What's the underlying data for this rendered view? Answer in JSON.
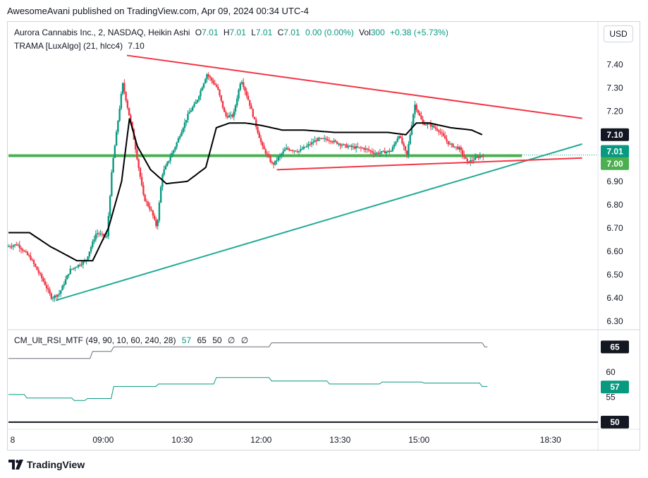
{
  "header": {
    "published": "AwesomeAvani published on TradingView.com, Apr 09, 2024 00:34 UTC-4"
  },
  "legend": {
    "symbol": "Aurora Cannabis Inc., 2, NASDAQ, Heikin Ashi",
    "o_label": "O",
    "o_value": "7.01",
    "h_label": "H",
    "h_value": "7.01",
    "l_label": "L",
    "l_value": "7.01",
    "c_label": "C",
    "c_value": "7.01",
    "change": "0.00 (0.00%)",
    "vol_label": "Vol",
    "vol_value": "300",
    "vol_change": "+0.38 (+5.73%)",
    "trama_label": "TRAMA [LuxAlgo] (21, hlcc4)",
    "trama_value": "7.10",
    "rsi_label": "CM_Ult_RSI_MTF (49, 90, 10, 60, 240, 28)",
    "rsi_values": [
      "57",
      "65",
      "50",
      "∅",
      "∅"
    ]
  },
  "currency_button": "USD",
  "footer": {
    "brand": "TradingView"
  },
  "colors": {
    "up": "#089981",
    "down": "#f23645",
    "trend_down": "#f23645",
    "trend_up": "#22ab94",
    "trama": "#000000",
    "level_line": "#4caf50",
    "rsi_line": "#089981",
    "rsi_upper": "#131722",
    "rsi_mid": "#131722"
  },
  "chart_data": [
    {
      "type": "candlestick",
      "title": "Aurora Cannabis Inc., 2, NASDAQ, Heikin Ashi",
      "x_tick_labels": [
        "8",
        "09:00",
        "10:30",
        "12:00",
        "13:30",
        "15:00",
        "18:30"
      ],
      "x_tick_times": [
        0,
        1.8,
        3.3,
        4.8,
        6.3,
        7.8,
        10.3
      ],
      "x_time_range": [
        0,
        11.2
      ],
      "ylim": [
        6.27,
        7.52
      ],
      "y_ticks": [
        6.3,
        6.4,
        6.5,
        6.6,
        6.7,
        6.8,
        6.9,
        7.0,
        7.1,
        7.2,
        7.3,
        7.4
      ],
      "price_anchors": [
        [
          0.0,
          6.62
        ],
        [
          0.2,
          6.63
        ],
        [
          0.45,
          6.57
        ],
        [
          0.7,
          6.47
        ],
        [
          0.85,
          6.4
        ],
        [
          1.0,
          6.42
        ],
        [
          1.2,
          6.52
        ],
        [
          1.5,
          6.56
        ],
        [
          1.7,
          6.68
        ],
        [
          1.9,
          6.66
        ],
        [
          2.0,
          6.96
        ],
        [
          2.2,
          7.32
        ],
        [
          2.4,
          7.1
        ],
        [
          2.6,
          6.83
        ],
        [
          2.75,
          6.77
        ],
        [
          2.85,
          6.7
        ],
        [
          2.95,
          6.93
        ],
        [
          3.2,
          7.05
        ],
        [
          3.45,
          7.19
        ],
        [
          3.6,
          7.24
        ],
        [
          3.8,
          7.36
        ],
        [
          4.0,
          7.3
        ],
        [
          4.15,
          7.18
        ],
        [
          4.3,
          7.18
        ],
        [
          4.45,
          7.34
        ],
        [
          4.6,
          7.24
        ],
        [
          4.85,
          7.05
        ],
        [
          5.05,
          6.97
        ],
        [
          5.3,
          7.04
        ],
        [
          5.55,
          7.03
        ],
        [
          5.9,
          7.08
        ],
        [
          6.1,
          7.08
        ],
        [
          6.45,
          7.05
        ],
        [
          6.8,
          7.04
        ],
        [
          7.0,
          7.02
        ],
        [
          7.3,
          7.03
        ],
        [
          7.45,
          7.1
        ],
        [
          7.6,
          7.01
        ],
        [
          7.75,
          7.23
        ],
        [
          7.9,
          7.15
        ],
        [
          8.05,
          7.14
        ],
        [
          8.2,
          7.12
        ],
        [
          8.4,
          7.06
        ],
        [
          8.6,
          7.04
        ],
        [
          8.75,
          6.98
        ],
        [
          9.0,
          7.01
        ]
      ],
      "trama_anchors": [
        [
          0.0,
          6.68
        ],
        [
          0.4,
          6.68
        ],
        [
          0.8,
          6.62
        ],
        [
          1.3,
          6.56
        ],
        [
          1.6,
          6.56
        ],
        [
          1.9,
          6.7
        ],
        [
          2.15,
          6.9
        ],
        [
          2.3,
          7.17
        ],
        [
          2.45,
          7.05
        ],
        [
          2.7,
          6.95
        ],
        [
          3.0,
          6.89
        ],
        [
          3.4,
          6.9
        ],
        [
          3.75,
          6.96
        ],
        [
          3.95,
          7.13
        ],
        [
          4.2,
          7.15
        ],
        [
          4.5,
          7.15
        ],
        [
          4.8,
          7.14
        ],
        [
          5.2,
          7.12
        ],
        [
          5.6,
          7.12
        ],
        [
          6.2,
          7.11
        ],
        [
          6.8,
          7.11
        ],
        [
          7.2,
          7.11
        ],
        [
          7.55,
          7.1
        ],
        [
          7.75,
          7.15
        ],
        [
          8.0,
          7.15
        ],
        [
          8.4,
          7.13
        ],
        [
          8.8,
          7.12
        ],
        [
          9.0,
          7.1
        ]
      ],
      "trend_lines": [
        {
          "name": "down",
          "points": [
            [
              2.25,
              7.44
            ],
            [
              10.9,
              7.17
            ]
          ]
        },
        {
          "name": "up",
          "points": [
            [
              0.9,
              6.39
            ],
            [
              10.9,
              7.06
            ]
          ]
        },
        {
          "name": "flat",
          "points": [
            [
              5.1,
              6.95
            ],
            [
              10.9,
              7.0
            ]
          ]
        }
      ],
      "level_line": 7.01,
      "price_labels": [
        {
          "value": "7.10",
          "price": 7.1,
          "style": "dark"
        },
        {
          "value": "7.01",
          "price": 7.01,
          "style": "green"
        },
        {
          "value": "7.00",
          "price": 7.0,
          "style": "lightgreen"
        }
      ]
    },
    {
      "type": "line",
      "title": "CM_Ult_RSI_MTF (49, 90, 10, 60, 240, 28)",
      "y_ticks": [
        55,
        60
      ],
      "ylim": [
        49,
        68
      ],
      "series": [
        {
          "name": "rsi",
          "points": [
            [
              0.0,
              55.5
            ],
            [
              0.3,
              55.5
            ],
            [
              0.35,
              54.8
            ],
            [
              1.2,
              54.8
            ],
            [
              1.25,
              54.3
            ],
            [
              1.45,
              54.3
            ],
            [
              1.5,
              54.7
            ],
            [
              1.95,
              54.7
            ],
            [
              2.0,
              57.1
            ],
            [
              2.8,
              57.1
            ],
            [
              2.85,
              57.6
            ],
            [
              3.9,
              57.6
            ],
            [
              3.95,
              58.9
            ],
            [
              4.95,
              58.9
            ],
            [
              5.0,
              58.2
            ],
            [
              6.05,
              58.2
            ],
            [
              6.1,
              57.6
            ],
            [
              7.05,
              57.6
            ],
            [
              7.1,
              58.0
            ],
            [
              7.85,
              58.0
            ],
            [
              7.9,
              57.8
            ],
            [
              8.95,
              57.8
            ],
            [
              9.0,
              57.1
            ],
            [
              9.1,
              57.1
            ]
          ]
        },
        {
          "name": "upper",
          "points": [
            [
              0.0,
              62.7
            ],
            [
              1.55,
              62.7
            ],
            [
              1.6,
              64.1
            ],
            [
              1.95,
              64.1
            ],
            [
              2.0,
              65.0
            ],
            [
              4.95,
              65.0
            ],
            [
              5.0,
              65.8
            ],
            [
              9.0,
              65.8
            ],
            [
              9.05,
              65.0
            ],
            [
              9.1,
              65.0
            ]
          ]
        },
        {
          "name": "mid",
          "points": [
            [
              0.0,
              50.0
            ],
            [
              11.2,
              50.0
            ]
          ]
        }
      ],
      "price_labels": [
        {
          "value": "65",
          "price": 65,
          "style": "dark"
        },
        {
          "value": "57",
          "price": 57,
          "style": "green"
        },
        {
          "value": "50",
          "price": 50,
          "style": "dark"
        }
      ]
    }
  ]
}
